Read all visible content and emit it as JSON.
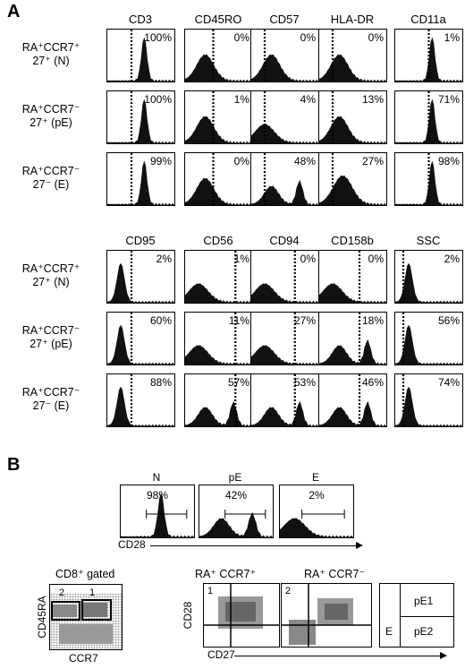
{
  "panel_a_letter": "A",
  "panel_b_letter": "B",
  "top_columns": [
    "CD3",
    "CD45RO",
    "CD57",
    "HLA-DR",
    "CD11a"
  ],
  "bottom_columns": [
    "CD95",
    "CD56",
    "CD94",
    "CD158b",
    "SSC"
  ],
  "row_labels": [
    {
      "line1": "RA⁺CCR7⁺",
      "line2": "27⁺ (N)"
    },
    {
      "line1": "RA⁺CCR7⁻",
      "line2": "27⁺ (pE)"
    },
    {
      "line1": "RA⁺CCR7⁻",
      "line2": "27⁻ (E)"
    }
  ],
  "top_values": [
    [
      "100%",
      "0%",
      "0%",
      "0%",
      "1%"
    ],
    [
      "100%",
      "1%",
      "4%",
      "13%",
      "71%"
    ],
    [
      "99%",
      "0%",
      "48%",
      "27%",
      "98%"
    ]
  ],
  "bottom_values": [
    [
      "2%",
      "1%",
      "0%",
      "0%",
      "2%"
    ],
    [
      "60%",
      "11%",
      "27%",
      "18%",
      "56%"
    ],
    [
      "88%",
      "57%",
      "53%",
      "46%",
      "74%"
    ]
  ],
  "b_subsets": [
    {
      "label": "N",
      "value": "98%"
    },
    {
      "label": "pE",
      "value": "42%"
    },
    {
      "label": "E",
      "value": "2%"
    }
  ],
  "b_cd28_axis": "CD28",
  "b_gated": "CD8⁺ gated",
  "b_cd45ra": "CD45RA",
  "b_ccr7": "CCR7",
  "b_gate1": "1",
  "b_gate2": "2",
  "b_plot1_title": "RA⁺ CCR7⁺",
  "b_plot2_title": "RA⁺ CCR7⁻",
  "b_plot_cd28": "CD28",
  "b_plot_cd27": "CD27",
  "b_quad_labels": {
    "e": "E",
    "pe1": "pE1",
    "pe2": "pE2"
  }
}
